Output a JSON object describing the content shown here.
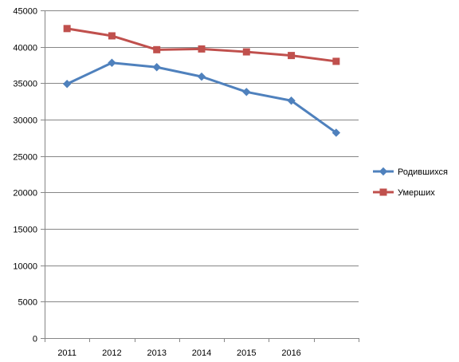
{
  "chart_data": {
    "type": "line",
    "x": [
      "2011",
      "2012",
      "2013",
      "2014",
      "2015",
      "2016",
      ""
    ],
    "series": [
      {
        "name": "Родившихся",
        "color": "#4F81BD",
        "marker": "diamond",
        "values": [
          34900,
          37800,
          37200,
          35900,
          33800,
          32600,
          28200
        ]
      },
      {
        "name": "Умерших",
        "color": "#C0504D",
        "marker": "square",
        "values": [
          42500,
          41500,
          39600,
          39700,
          39300,
          38800,
          38000
        ]
      }
    ],
    "ylim": [
      0,
      45000
    ],
    "yticks": [
      0,
      5000,
      10000,
      15000,
      20000,
      25000,
      30000,
      35000,
      40000,
      45000
    ],
    "grid": "horizontal",
    "legend": "right",
    "title": "",
    "xlabel": "",
    "ylabel": ""
  }
}
